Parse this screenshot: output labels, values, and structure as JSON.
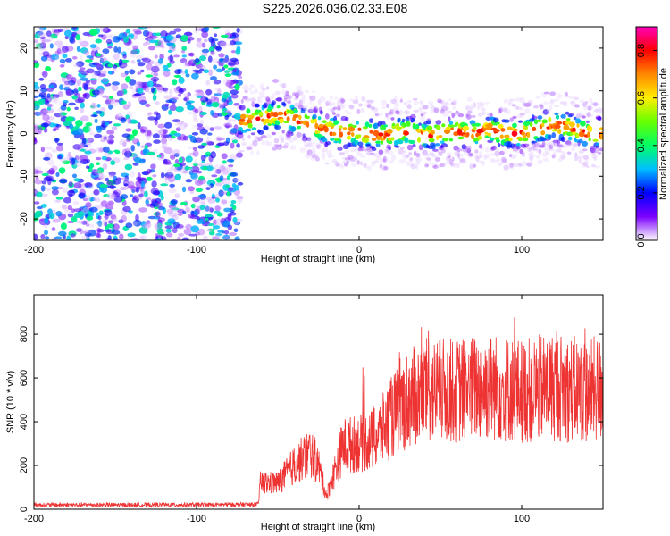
{
  "title": "S225.2026.036.02.33.E08",
  "chart_data": [
    {
      "type": "heatmap",
      "xlabel": "Height of straight line (km)",
      "ylabel": "Frequency (Hz)",
      "xlim": [
        -200,
        150
      ],
      "ylim": [
        -25,
        25
      ],
      "xticks": [
        -200,
        -100,
        0,
        100
      ],
      "yticks": [
        -20,
        -10,
        0,
        10,
        20
      ],
      "ridge": [
        [
          -75,
          3
        ],
        [
          -60,
          3.5
        ],
        [
          -50,
          4.5
        ],
        [
          -40,
          3.5
        ],
        [
          -30,
          2
        ],
        [
          -20,
          1
        ],
        [
          -10,
          0
        ],
        [
          0,
          0.5
        ],
        [
          10,
          -0.5
        ],
        [
          20,
          0
        ],
        [
          30,
          0.5
        ],
        [
          40,
          -0.5
        ],
        [
          50,
          0
        ],
        [
          60,
          0.5
        ],
        [
          70,
          0
        ],
        [
          80,
          1
        ],
        [
          90,
          0
        ],
        [
          100,
          0
        ],
        [
          110,
          1
        ],
        [
          120,
          2
        ],
        [
          130,
          1.5
        ],
        [
          140,
          0
        ],
        [
          150,
          0
        ]
      ],
      "noise_region_x": [
        -200,
        -73
      ],
      "colorbar": {
        "label": "Normalized spectral amplitude",
        "range": [
          0.0,
          0.9
        ],
        "ticks": [
          0.0,
          0.2,
          0.4,
          0.6,
          0.8
        ],
        "colors": [
          "#ffffff",
          "#7b00ff",
          "#0000ff",
          "#00bfff",
          "#00ff66",
          "#66ff00",
          "#ffee00",
          "#ff8800",
          "#ff0000",
          "#ff00bb"
        ]
      }
    },
    {
      "type": "line",
      "xlabel": "Height of straight line (km)",
      "ylabel": "SNR (10 * v/v)",
      "xlim": [
        -200,
        150
      ],
      "ylim": [
        0,
        980
      ],
      "xticks": [
        -200,
        -100,
        0,
        100
      ],
      "yticks": [
        0,
        200,
        400,
        600,
        800
      ],
      "color": "#ee3333",
      "envelope": [
        [
          -200,
          20
        ],
        [
          -120,
          20
        ],
        [
          -62,
          22
        ],
        [
          -61,
          120
        ],
        [
          -50,
          120
        ],
        [
          -40,
          200
        ],
        [
          -30,
          260
        ],
        [
          -25,
          200
        ],
        [
          -20,
          60
        ],
        [
          -10,
          290
        ],
        [
          0,
          300
        ],
        [
          10,
          320
        ],
        [
          20,
          420
        ],
        [
          30,
          500
        ],
        [
          40,
          540
        ],
        [
          60,
          540
        ],
        [
          80,
          560
        ],
        [
          100,
          540
        ],
        [
          120,
          560
        ],
        [
          140,
          540
        ],
        [
          150,
          550
        ]
      ]
    }
  ]
}
